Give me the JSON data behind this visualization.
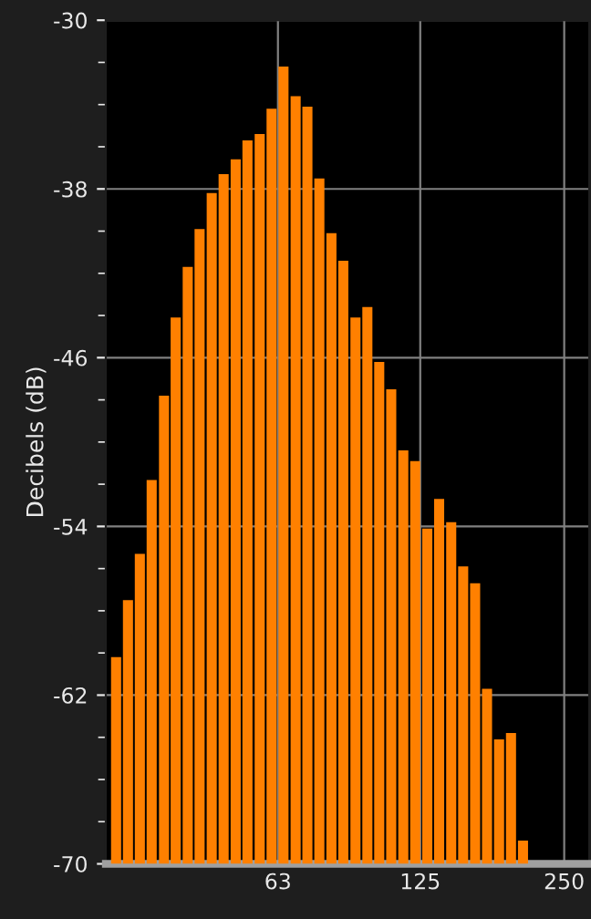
{
  "chart_data": {
    "type": "bar",
    "ylabel": "Decibels (dB)",
    "x": [
      28.9,
      30.6,
      32.4,
      34.3,
      36.4,
      38.5,
      40.8,
      43.2,
      45.8,
      48.5,
      51.4,
      54.4,
      57.7,
      61.1,
      64.7,
      68.6,
      72.6,
      76.9,
      81.5,
      86.3,
      91.5,
      96.9,
      102.6,
      108.7,
      115.2,
      122.0,
      129.3,
      136.9,
      145.1,
      153.7,
      162.8,
      172.4,
      182.7,
      193.5,
      205.0
    ],
    "values": [
      9.8,
      12.5,
      14.7,
      18.2,
      22.2,
      25.9,
      28.3,
      30.1,
      31.8,
      32.7,
      33.4,
      34.3,
      34.6,
      35.8,
      37.8,
      36.4,
      35.9,
      32.5,
      29.9,
      28.6,
      25.9,
      26.4,
      23.8,
      22.5,
      19.6,
      19.1,
      15.9,
      17.3,
      16.2,
      14.1,
      13.3,
      8.3,
      5.9,
      6.2,
      1.1
    ],
    "base": [
      -70,
      -70,
      -70,
      -70,
      -70,
      -70,
      -70,
      -70,
      -70,
      -70,
      -70,
      -70,
      -70,
      -70,
      -70,
      -70,
      -70,
      -70,
      -70,
      -70,
      -70,
      -70,
      -70,
      -70,
      -70,
      -70,
      -70,
      -70,
      -70,
      -70,
      -70,
      -70,
      -70,
      -70,
      -70
    ],
    "color": "#ff8000",
    "log": "x",
    "xlim": [
      27.5,
      282
    ],
    "xticks": [
      63,
      125,
      250
    ],
    "ylim": [
      -70,
      -30
    ],
    "yticks": [
      -70,
      {
        "value": -68,
        "label": null
      },
      {
        "value": -66,
        "label": null
      },
      {
        "value": -64,
        "label": null
      },
      -62,
      {
        "value": -60,
        "label": null
      },
      {
        "value": -58,
        "label": null
      },
      {
        "value": -56,
        "label": null
      },
      -54,
      {
        "value": -52,
        "label": null
      },
      {
        "value": -50,
        "label": null
      },
      {
        "value": -48,
        "label": null
      },
      -46,
      {
        "value": -44,
        "label": null
      },
      {
        "value": -42,
        "label": null
      },
      {
        "value": -40,
        "label": null
      },
      -38,
      {
        "value": -36,
        "label": null
      },
      {
        "value": -34,
        "label": null
      },
      {
        "value": -32,
        "label": null
      },
      -30
    ],
    "grid": true
  }
}
